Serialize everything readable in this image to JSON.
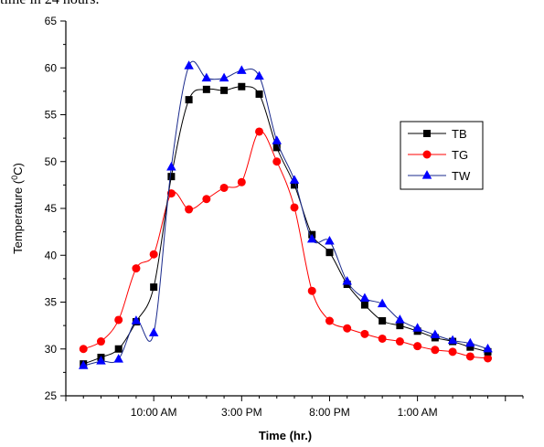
{
  "caption": "time in 24 hours.",
  "chart_data": {
    "type": "line",
    "xlabel": "Time (hr.)",
    "ylabel_main": "Temperature (",
    "ylabel_sup": "0",
    "ylabel_end": "C)",
    "ylim": [
      25,
      65
    ],
    "yticks": [
      25,
      30,
      35,
      40,
      45,
      50,
      55,
      60,
      65
    ],
    "xlim": [
      0,
      26
    ],
    "xticks_labeled": [
      {
        "x": 5,
        "label": "10:00 AM"
      },
      {
        "x": 10,
        "label": "3:00 PM"
      },
      {
        "x": 15,
        "label": "8:00 PM"
      },
      {
        "x": 20,
        "label": "1:00 AM"
      }
    ],
    "xticks_all": [
      0,
      1,
      2,
      3,
      4,
      5,
      6,
      7,
      8,
      9,
      10,
      11,
      12,
      13,
      14,
      15,
      16,
      17,
      18,
      19,
      20,
      21,
      22,
      23,
      24,
      25,
      26
    ],
    "legend_position": "right",
    "series": [
      {
        "name": "TB",
        "color": "#000000",
        "line_color": "#000000",
        "marker": "square",
        "x": [
          1,
          2,
          3,
          4,
          5,
          6,
          7,
          8,
          9,
          10,
          11,
          12,
          13,
          14,
          15,
          16,
          17,
          18,
          19,
          20,
          21,
          22,
          23,
          24
        ],
        "values": [
          28.4,
          29.1,
          30.0,
          32.9,
          36.6,
          48.4,
          56.6,
          57.7,
          57.6,
          58.0,
          57.2,
          51.5,
          47.5,
          42.2,
          40.3,
          36.9,
          34.7,
          33.0,
          32.5,
          31.9,
          31.2,
          30.8,
          30.2,
          29.7
        ]
      },
      {
        "name": "TG",
        "color": "#ff0000",
        "line_color": "#ff0000",
        "marker": "circle",
        "x": [
          1,
          2,
          3,
          4,
          5,
          6,
          7,
          8,
          9,
          10,
          11,
          12,
          13,
          14,
          15,
          16,
          17,
          18,
          19,
          20,
          21,
          22,
          23,
          24
        ],
        "values": [
          30.0,
          30.8,
          33.1,
          38.6,
          40.1,
          46.6,
          44.9,
          46.0,
          47.2,
          47.8,
          53.2,
          50.0,
          45.1,
          36.2,
          33.0,
          32.2,
          31.6,
          31.1,
          30.8,
          30.3,
          29.9,
          29.7,
          29.2,
          29.0
        ]
      },
      {
        "name": "TW",
        "color": "#0000ff",
        "line_color": "#1a2a8c",
        "marker": "triangle",
        "x": [
          1,
          2,
          3,
          4,
          5,
          6,
          7,
          8,
          9,
          10,
          11,
          12,
          13,
          14,
          15,
          16,
          17,
          18,
          19,
          20,
          21,
          22,
          23,
          24
        ],
        "values": [
          28.2,
          28.7,
          28.9,
          33.0,
          31.7,
          49.4,
          60.2,
          58.9,
          58.9,
          59.7,
          59.1,
          52.2,
          48.0,
          41.7,
          41.5,
          37.2,
          35.4,
          34.8,
          33.1,
          32.2,
          31.5,
          30.9,
          30.6,
          30.0
        ]
      }
    ]
  }
}
